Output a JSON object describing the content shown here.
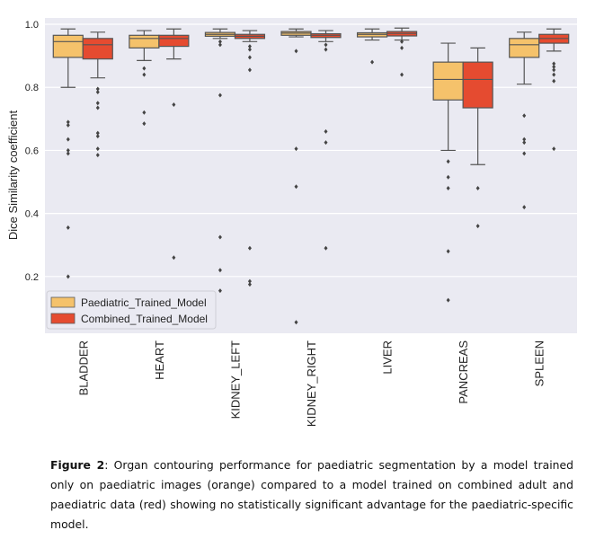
{
  "chart_data": {
    "type": "box",
    "ylabel": "Dice Similarity coefficient",
    "xlabel": "",
    "ylim": [
      0.02,
      1.02
    ],
    "yticks": [
      0.2,
      0.4,
      0.6,
      0.8,
      1.0
    ],
    "ytick_labels": [
      "0.2",
      "0.4",
      "0.6",
      "0.8",
      "1.0"
    ],
    "grid": true,
    "legend_position": "lower-left",
    "categories": [
      "BLADDER",
      "HEART",
      "KIDNEY_LEFT",
      "KIDNEY_RIGHT",
      "LIVER",
      "PANCREAS",
      "SPLEEN"
    ],
    "series": [
      {
        "name": "Paediatric_Trained_Model",
        "color": "#f5c26b",
        "boxes": [
          {
            "whislo": 0.8,
            "q1": 0.895,
            "med": 0.945,
            "q3": 0.965,
            "whishi": 0.985,
            "fliers": [
              0.69,
              0.68,
              0.635,
              0.6,
              0.59,
              0.355,
              0.2
            ]
          },
          {
            "whislo": 0.885,
            "q1": 0.925,
            "med": 0.955,
            "q3": 0.965,
            "whishi": 0.98,
            "fliers": [
              0.86,
              0.84,
              0.72,
              0.685
            ]
          },
          {
            "whislo": 0.955,
            "q1": 0.962,
            "med": 0.968,
            "q3": 0.974,
            "whishi": 0.985,
            "fliers": [
              0.945,
              0.935,
              0.775,
              0.325,
              0.22,
              0.155
            ]
          },
          {
            "whislo": 0.96,
            "q1": 0.965,
            "med": 0.972,
            "q3": 0.977,
            "whishi": 0.985,
            "fliers": [
              0.915,
              0.605,
              0.485,
              0.055
            ]
          },
          {
            "whislo": 0.95,
            "q1": 0.96,
            "med": 0.968,
            "q3": 0.973,
            "whishi": 0.985,
            "fliers": [
              0.88
            ]
          },
          {
            "whislo": 0.6,
            "q1": 0.76,
            "med": 0.825,
            "q3": 0.88,
            "whishi": 0.94,
            "fliers": [
              0.565,
              0.515,
              0.48,
              0.28,
              0.125
            ]
          },
          {
            "whislo": 0.81,
            "q1": 0.895,
            "med": 0.935,
            "q3": 0.955,
            "whishi": 0.975,
            "fliers": [
              0.71,
              0.635,
              0.625,
              0.59,
              0.42
            ]
          }
        ]
      },
      {
        "name": "Combined_Trained_Model",
        "color": "#e54b30",
        "boxes": [
          {
            "whislo": 0.83,
            "q1": 0.89,
            "med": 0.935,
            "q3": 0.955,
            "whishi": 0.975,
            "fliers": [
              0.795,
              0.785,
              0.75,
              0.735,
              0.655,
              0.645,
              0.605,
              0.585
            ]
          },
          {
            "whislo": 0.89,
            "q1": 0.93,
            "med": 0.955,
            "q3": 0.965,
            "whishi": 0.985,
            "fliers": [
              0.745,
              0.26
            ]
          },
          {
            "whislo": 0.945,
            "q1": 0.955,
            "med": 0.962,
            "q3": 0.968,
            "whishi": 0.98,
            "fliers": [
              0.93,
              0.92,
              0.895,
              0.855,
              0.29,
              0.185,
              0.175
            ]
          },
          {
            "whislo": 0.945,
            "q1": 0.958,
            "med": 0.965,
            "q3": 0.97,
            "whishi": 0.98,
            "fliers": [
              0.935,
              0.92,
              0.66,
              0.625,
              0.29
            ]
          },
          {
            "whislo": 0.95,
            "q1": 0.963,
            "med": 0.971,
            "q3": 0.977,
            "whishi": 0.988,
            "fliers": [
              0.945,
              0.925,
              0.84
            ]
          },
          {
            "whislo": 0.555,
            "q1": 0.735,
            "med": 0.825,
            "q3": 0.88,
            "whishi": 0.925,
            "fliers": [
              0.48,
              0.36
            ]
          },
          {
            "whislo": 0.915,
            "q1": 0.94,
            "med": 0.955,
            "q3": 0.968,
            "whishi": 0.985,
            "fliers": [
              0.875,
              0.865,
              0.855,
              0.84,
              0.82,
              0.605
            ]
          }
        ]
      }
    ]
  },
  "caption": {
    "label": "Figure 2",
    "text": ": Organ contouring performance for paediatric segmentation by a model trained only on paediatric images (orange) compared to a model trained on combined adult and paediatric data (red) showing no statistically significant advantage for the paediatric-specific model."
  }
}
